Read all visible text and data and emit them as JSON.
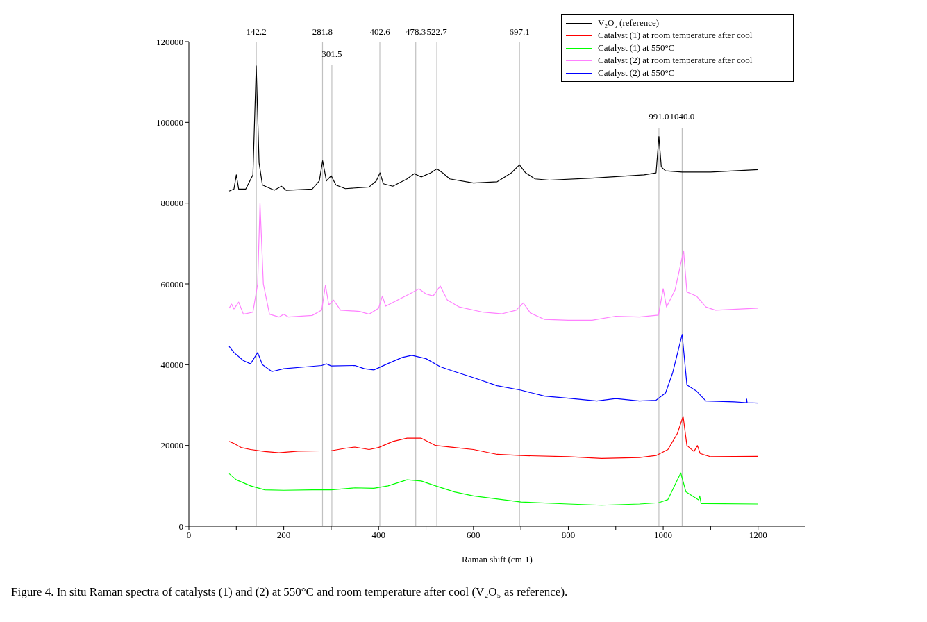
{
  "chart_data": {
    "type": "line",
    "xlabel": "Raman shift (cm-1)",
    "xlim": [
      0,
      1300
    ],
    "xticks": [
      0,
      {
        "value": 100,
        "label": null
      },
      200,
      {
        "value": 300,
        "label": null
      },
      400,
      {
        "value": 500,
        "label": null
      },
      600,
      {
        "value": 700,
        "label": null
      },
      800,
      {
        "value": 900,
        "label": null
      },
      1000,
      {
        "value": 1100,
        "label": null
      },
      1200
    ],
    "ylim": [
      0,
      120000
    ],
    "yticks": [
      0,
      20000,
      40000,
      60000,
      80000,
      100000,
      120000
    ],
    "legend": "top right",
    "marker": "none",
    "line_style": "solid",
    "series": [
      {
        "name": "V₂O₅ (reference)",
        "color": "#000000",
        "x": [
          85,
          95,
          100,
          105,
          120,
          135,
          142,
          148,
          155,
          180,
          195,
          205,
          260,
          275,
          282,
          290,
          300,
          310,
          330,
          380,
          395,
          403,
          410,
          430,
          460,
          475,
          490,
          510,
          523,
          535,
          550,
          600,
          650,
          680,
          697,
          710,
          730,
          760,
          850,
          960,
          985,
          991,
          996,
          1005,
          1040,
          1100,
          1200
        ],
        "values": [
          83000,
          83500,
          87000,
          83500,
          83500,
          87000,
          114000,
          90000,
          84500,
          83200,
          84200,
          83200,
          83500,
          85500,
          90500,
          85500,
          86800,
          84500,
          83600,
          84000,
          85500,
          87500,
          84800,
          84200,
          86000,
          87300,
          86500,
          87500,
          88500,
          87500,
          86000,
          85000,
          85300,
          87500,
          89500,
          87500,
          86000,
          85700,
          86200,
          87000,
          87500,
          96500,
          89000,
          88000,
          87700,
          87700,
          88300
        ]
      },
      {
        "name": "Catalyst (1) at room temperature after cool",
        "color": "#ff0000",
        "x": [
          85,
          95,
          110,
          130,
          160,
          190,
          230,
          300,
          330,
          350,
          380,
          400,
          430,
          460,
          490,
          520,
          560,
          600,
          650,
          700,
          800,
          870,
          950,
          985,
          1010,
          1030,
          1042,
          1050,
          1065,
          1072,
          1078,
          1100,
          1200
        ],
        "values": [
          21000,
          20500,
          19500,
          19000,
          18500,
          18200,
          18600,
          18700,
          19300,
          19600,
          19000,
          19500,
          21000,
          21800,
          21800,
          20000,
          19500,
          19000,
          17800,
          17500,
          17200,
          16800,
          17000,
          17500,
          19000,
          23000,
          27200,
          20000,
          18500,
          20000,
          18000,
          17200,
          17300
        ]
      },
      {
        "name": "Catalyst (1) at 550°C",
        "color": "#00ff00",
        "x": [
          85,
          100,
          130,
          160,
          200,
          260,
          300,
          350,
          390,
          420,
          460,
          490,
          520,
          560,
          600,
          700,
          800,
          870,
          950,
          990,
          1010,
          1037,
          1048,
          1075,
          1077,
          1080,
          1200
        ],
        "values": [
          13000,
          11500,
          10000,
          9000,
          8900,
          9000,
          9000,
          9500,
          9400,
          10000,
          11500,
          11200,
          10000,
          8500,
          7500,
          6000,
          5500,
          5200,
          5500,
          5800,
          6600,
          13200,
          8500,
          6500,
          7500,
          5600,
          5500
        ]
      },
      {
        "name": "Catalyst (2) at room temperature after cool",
        "color": "#ff80ff",
        "x": [
          85,
          90,
          95,
          105,
          115,
          135,
          145,
          150,
          157,
          170,
          190,
          200,
          210,
          260,
          280,
          288,
          295,
          305,
          320,
          360,
          380,
          400,
          408,
          415,
          440,
          470,
          485,
          500,
          515,
          530,
          545,
          570,
          620,
          660,
          690,
          705,
          720,
          750,
          800,
          850,
          900,
          950,
          990,
          1000,
          1007,
          1025,
          1043,
          1050,
          1070,
          1090,
          1110,
          1200
        ],
        "values": [
          54000,
          55000,
          53800,
          55500,
          52500,
          53000,
          60000,
          80000,
          60000,
          52500,
          51800,
          52500,
          51800,
          52200,
          53500,
          59700,
          54800,
          56000,
          53500,
          53200,
          52500,
          54000,
          57000,
          54500,
          56000,
          57800,
          58800,
          57500,
          57000,
          59500,
          56000,
          54300,
          53000,
          52600,
          53500,
          55300,
          52800,
          51200,
          51000,
          51000,
          52000,
          51800,
          52300,
          58800,
          54300,
          58500,
          68200,
          58000,
          57000,
          54300,
          53500,
          54000
        ]
      },
      {
        "name": "Catalyst (2) at 550°C",
        "color": "#0000ff",
        "x": [
          85,
          95,
          115,
          130,
          145,
          155,
          175,
          200,
          250,
          280,
          290,
          300,
          350,
          370,
          390,
          420,
          450,
          470,
          500,
          530,
          560,
          600,
          650,
          700,
          750,
          800,
          860,
          900,
          950,
          985,
          1005,
          1020,
          1040,
          1050,
          1070,
          1090,
          1150,
          1175,
          1176,
          1177,
          1200
        ],
        "values": [
          44500,
          43000,
          41000,
          40200,
          43000,
          40000,
          38300,
          39000,
          39500,
          39800,
          40200,
          39700,
          39800,
          39000,
          38700,
          40300,
          41800,
          42300,
          41500,
          39500,
          38300,
          36800,
          34800,
          33700,
          32200,
          31700,
          31000,
          31600,
          31000,
          31200,
          33000,
          38000,
          47500,
          35000,
          33500,
          31000,
          30800,
          30600,
          31500,
          30600,
          30500
        ]
      }
    ],
    "ref_lines": [
      {
        "axis": "x",
        "value": 142.2,
        "label": "142.2",
        "color": "#c0c0c0"
      },
      {
        "axis": "x",
        "value": 281.8,
        "label": "281.8",
        "color": "#c0c0c0"
      },
      {
        "axis": "x",
        "value": 301.5,
        "label": "301.5",
        "color": "#c0c0c0"
      },
      {
        "axis": "x",
        "value": 402.6,
        "label": "402.6",
        "color": "#c0c0c0"
      },
      {
        "axis": "x",
        "value": 478.3,
        "label": "478.3",
        "color": "#c0c0c0"
      },
      {
        "axis": "x",
        "value": 522.7,
        "label": "522.7",
        "color": "#c0c0c0"
      },
      {
        "axis": "x",
        "value": 697.1,
        "label": "697.1",
        "color": "#c0c0c0"
      },
      {
        "axis": "x",
        "value": 991.0,
        "label": "991.0",
        "color": "#c0c0c0"
      },
      {
        "axis": "x",
        "value": 1040.0,
        "label": "1040.0",
        "color": "#c0c0c0"
      }
    ],
    "annotations": [
      "Figure 4. In situ Raman spectra of catalysts (1) and (2) at 550°C and room temperature after cool (V₂O₅ as reference)."
    ]
  }
}
